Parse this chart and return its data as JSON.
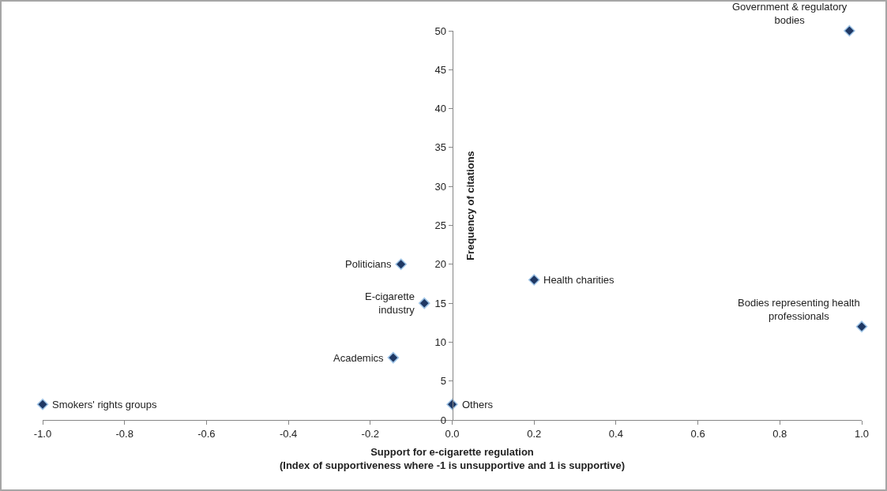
{
  "chart_data": {
    "type": "scatter",
    "xlabel": "Support for e-cigarette regulation\n(Index of supportiveness where -1 is unsupportive and 1 is supportive)",
    "ylabel": "Frequency of citations",
    "x": [
      0.97,
      1.0,
      0.2,
      -0.125,
      -0.068,
      -0.144,
      -1.0,
      0.0
    ],
    "values": [
      50,
      12,
      18,
      20,
      15,
      8,
      2,
      2
    ],
    "color": "#1f3864",
    "marker": "diamond",
    "grid": false,
    "xlim": [
      -1,
      1
    ],
    "ylim": [
      0,
      50
    ],
    "xticks": [
      {
        "value": -1,
        "label": "-1.0"
      },
      {
        "value": -0.8,
        "label": "-0.8"
      },
      {
        "value": -0.6,
        "label": "-0.6"
      },
      {
        "value": -0.4,
        "label": "-0.4"
      },
      {
        "value": -0.2,
        "label": "-0.2"
      },
      {
        "value": 0,
        "label": "0.0"
      },
      {
        "value": 0.2,
        "label": "0.2"
      },
      {
        "value": 0.4,
        "label": "0.4"
      },
      {
        "value": 0.6,
        "label": "0.6"
      },
      {
        "value": 0.8,
        "label": "0.8"
      },
      {
        "value": 1,
        "label": "1.0"
      }
    ],
    "yticks": [
      0,
      5,
      10,
      15,
      20,
      25,
      30,
      35,
      40,
      45,
      50
    ],
    "annotations": [
      {
        "text": "Government & regulatory\nbodies",
        "x": 0.97,
        "y": 50
      },
      {
        "text": "Bodies representing health\nprofessionals",
        "x": 1.0,
        "y": 12
      },
      {
        "text": "Health charities",
        "x": 0.2,
        "y": 18
      },
      {
        "text": "Politicians",
        "x": -0.125,
        "y": 20
      },
      {
        "text": "E-cigarette\nindustry",
        "x": -0.068,
        "y": 15
      },
      {
        "text": "Academics",
        "x": -0.144,
        "y": 8
      },
      {
        "text": "Smokers' rights groups",
        "x": -1.0,
        "y": 2
      },
      {
        "text": "Others",
        "x": 0.0,
        "y": 2
      }
    ]
  }
}
